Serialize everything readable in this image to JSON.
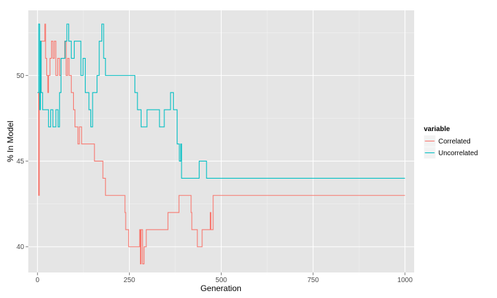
{
  "chart_data": {
    "type": "line",
    "xlabel": "Generation",
    "ylabel": "% In Model",
    "xlim": [
      -25,
      1025
    ],
    "ylim": [
      38.5,
      53.8
    ],
    "x_ticks": [
      0,
      250,
      500,
      750,
      1000
    ],
    "y_ticks": [
      40,
      45,
      50
    ],
    "grid": true,
    "legend": {
      "title": "variable",
      "placement": "right"
    },
    "series": [
      {
        "name": "Correlated",
        "color": "#F8766D",
        "step": true,
        "points": [
          [
            0,
            49
          ],
          [
            3,
            43
          ],
          [
            5,
            49
          ],
          [
            8,
            49
          ],
          [
            10,
            52
          ],
          [
            18,
            52
          ],
          [
            20,
            53
          ],
          [
            22,
            51
          ],
          [
            25,
            50
          ],
          [
            28,
            49
          ],
          [
            30,
            50
          ],
          [
            34,
            51
          ],
          [
            38,
            52
          ],
          [
            42,
            51
          ],
          [
            46,
            52
          ],
          [
            50,
            50
          ],
          [
            55,
            51
          ],
          [
            60,
            50
          ],
          [
            64,
            51
          ],
          [
            70,
            51
          ],
          [
            74,
            52
          ],
          [
            78,
            50
          ],
          [
            82,
            51
          ],
          [
            86,
            50
          ],
          [
            92,
            49
          ],
          [
            98,
            48
          ],
          [
            102,
            47
          ],
          [
            106,
            47
          ],
          [
            110,
            46
          ],
          [
            114,
            47
          ],
          [
            120,
            46
          ],
          [
            155,
            45
          ],
          [
            178,
            44
          ],
          [
            185,
            43
          ],
          [
            238,
            42
          ],
          [
            240,
            41
          ],
          [
            248,
            40
          ],
          [
            278,
            41
          ],
          [
            280,
            39
          ],
          [
            282,
            41
          ],
          [
            286,
            39
          ],
          [
            290,
            40
          ],
          [
            296,
            41
          ],
          [
            355,
            42
          ],
          [
            385,
            43
          ],
          [
            418,
            42
          ],
          [
            420,
            41
          ],
          [
            435,
            40
          ],
          [
            448,
            41
          ],
          [
            470,
            42
          ],
          [
            472,
            41
          ],
          [
            478,
            43
          ],
          [
            1000,
            43
          ]
        ]
      },
      {
        "name": "Uncorrelated",
        "color": "#00BFC4",
        "step": true,
        "points": [
          [
            0,
            49
          ],
          [
            3,
            53
          ],
          [
            6,
            48
          ],
          [
            8,
            52
          ],
          [
            10,
            49
          ],
          [
            14,
            48
          ],
          [
            30,
            47
          ],
          [
            36,
            48
          ],
          [
            42,
            47
          ],
          [
            50,
            48
          ],
          [
            56,
            47
          ],
          [
            60,
            49
          ],
          [
            64,
            51
          ],
          [
            75,
            52
          ],
          [
            80,
            53
          ],
          [
            85,
            52
          ],
          [
            92,
            51
          ],
          [
            100,
            52
          ],
          [
            118,
            50
          ],
          [
            124,
            51
          ],
          [
            130,
            49
          ],
          [
            140,
            48
          ],
          [
            145,
            47
          ],
          [
            150,
            49
          ],
          [
            162,
            50
          ],
          [
            168,
            52
          ],
          [
            175,
            53
          ],
          [
            180,
            51
          ],
          [
            185,
            50
          ],
          [
            265,
            49
          ],
          [
            272,
            48
          ],
          [
            282,
            47
          ],
          [
            298,
            48
          ],
          [
            332,
            47
          ],
          [
            345,
            48
          ],
          [
            362,
            49
          ],
          [
            370,
            48
          ],
          [
            380,
            46
          ],
          [
            386,
            45
          ],
          [
            390,
            46
          ],
          [
            392,
            44
          ],
          [
            440,
            45
          ],
          [
            460,
            44
          ],
          [
            1000,
            44
          ]
        ]
      }
    ]
  }
}
